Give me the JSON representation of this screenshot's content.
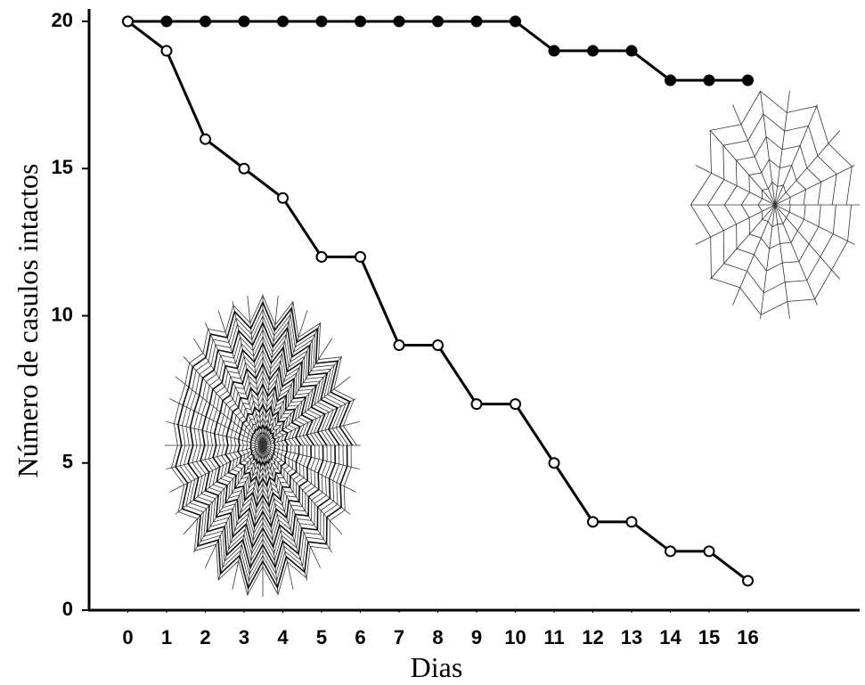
{
  "chart_data": {
    "type": "line",
    "x_label": "Dias",
    "y_label": "Número de casulos intactos",
    "x": [
      0,
      1,
      2,
      3,
      4,
      5,
      6,
      7,
      8,
      9,
      10,
      11,
      12,
      13,
      14,
      15,
      16
    ],
    "series": [
      {
        "color": "#000000",
        "marker": "filled",
        "values": [
          20,
          20,
          20,
          20,
          20,
          20,
          20,
          20,
          20,
          20,
          20,
          19,
          19,
          19,
          18,
          18,
          18
        ]
      },
      {
        "color": "#000000",
        "marker": "open",
        "values": [
          20,
          19,
          16,
          15,
          14,
          12,
          12,
          9,
          9,
          7,
          7,
          5,
          3,
          3,
          2,
          2,
          1
        ]
      }
    ],
    "xlim": [
      -1,
      19
    ],
    "xticks": [
      0,
      1,
      2,
      3,
      4,
      5,
      6,
      7,
      8,
      9,
      10,
      11,
      12,
      13,
      14,
      15,
      16
    ],
    "ylim": [
      0,
      20
    ],
    "yticks": [
      0,
      5,
      10,
      15,
      20
    ]
  }
}
